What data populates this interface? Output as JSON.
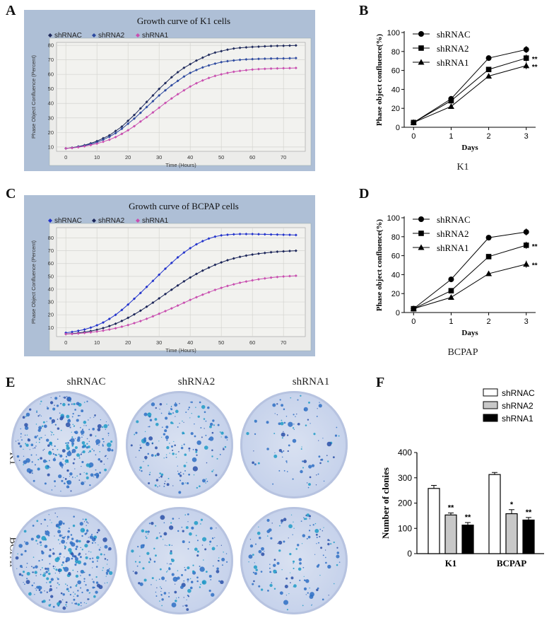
{
  "panels": {
    "A": "A",
    "B": "B",
    "C": "C",
    "D": "D",
    "E": "E",
    "F": "F"
  },
  "chart_data": [
    {
      "id": "A",
      "type": "line",
      "title": "Growth curve  of K1 cells",
      "xlabel": "Time (Hours)",
      "ylabel": "Phase Object Confluence (Percent)",
      "xlim": [
        -3,
        77
      ],
      "ylim": [
        7,
        82
      ],
      "xticks": [
        0,
        10,
        20,
        30,
        40,
        50,
        60,
        70
      ],
      "yticks": [
        10,
        20,
        30,
        40,
        50,
        60,
        70,
        80
      ],
      "grid": true,
      "legend_position": "top-left",
      "series": [
        {
          "name": "shRNAC",
          "color": "#1f2a5c",
          "x": [
            0,
            2,
            4,
            6,
            8,
            10,
            12,
            14,
            16,
            18,
            20,
            22,
            24,
            26,
            28,
            30,
            32,
            34,
            36,
            38,
            40,
            42,
            44,
            46,
            48,
            50,
            52,
            54,
            56,
            58,
            60,
            62,
            64,
            66,
            68,
            70,
            72,
            74
          ],
          "values": [
            9,
            9.5,
            10.3,
            11.2,
            12.5,
            14,
            16,
            18,
            21,
            24,
            28,
            32,
            36.5,
            41,
            45.5,
            50,
            54,
            58,
            61.5,
            64.5,
            67,
            69.5,
            71.5,
            73.5,
            75,
            76,
            77,
            77.8,
            78.3,
            78.6,
            78.9,
            79.1,
            79.3,
            79.5,
            79.6,
            79.7,
            79.8,
            79.9
          ]
        },
        {
          "name": "shRNA2",
          "color": "#2d4aa0",
          "x": [
            0,
            2,
            4,
            6,
            8,
            10,
            12,
            14,
            16,
            18,
            20,
            22,
            24,
            26,
            28,
            30,
            32,
            34,
            36,
            38,
            40,
            42,
            44,
            46,
            48,
            50,
            52,
            54,
            56,
            58,
            60,
            62,
            64,
            66,
            68,
            70,
            72,
            74
          ],
          "values": [
            9,
            9.4,
            10.1,
            10.9,
            12,
            13.2,
            15,
            17,
            19.5,
            22.5,
            26,
            29.5,
            33.5,
            37.5,
            41.5,
            45.5,
            49,
            52.5,
            55.5,
            58.5,
            61,
            63,
            64.8,
            66.2,
            67.4,
            68.4,
            69.1,
            69.6,
            70,
            70.3,
            70.5,
            70.7,
            70.8,
            70.9,
            71,
            71,
            71.1,
            71.2
          ]
        },
        {
          "name": "shRNA1",
          "color": "#c94fb0",
          "x": [
            0,
            2,
            4,
            6,
            8,
            10,
            12,
            14,
            16,
            18,
            20,
            22,
            24,
            26,
            28,
            30,
            32,
            34,
            36,
            38,
            40,
            42,
            44,
            46,
            48,
            50,
            52,
            54,
            56,
            58,
            60,
            62,
            64,
            66,
            68,
            70,
            72,
            74
          ],
          "values": [
            9,
            9.3,
            9.8,
            10.5,
            11.3,
            12.3,
            13.6,
            15,
            16.8,
            19,
            21.5,
            24.3,
            27.5,
            30.5,
            33.8,
            37,
            40.3,
            43.4,
            46.3,
            49,
            51.6,
            53.9,
            55.8,
            57.5,
            58.9,
            60,
            61,
            61.8,
            62.4,
            62.9,
            63.3,
            63.6,
            63.8,
            64,
            64.1,
            64.2,
            64.3,
            64.4
          ]
        }
      ]
    },
    {
      "id": "B",
      "type": "line",
      "title": "",
      "xlabel": "Days",
      "ylabel": "Phase object confluence(%)",
      "caption": "K1",
      "xlim": [
        -0.25,
        3.25
      ],
      "ylim": [
        0,
        100
      ],
      "xticks": [
        0,
        1,
        2,
        3
      ],
      "yticks": [
        0,
        20,
        40,
        60,
        80,
        100
      ],
      "legend_position": "top-left",
      "categories": [
        0,
        1,
        2,
        3
      ],
      "series": [
        {
          "name": "shRNAC",
          "marker": "circle",
          "values": [
            5,
            30,
            73,
            82
          ],
          "sig": ""
        },
        {
          "name": "shRNA2",
          "marker": "square",
          "values": [
            5,
            28,
            61,
            73
          ],
          "sig": "**"
        },
        {
          "name": "shRNA1",
          "marker": "triangle",
          "values": [
            5,
            22,
            54,
            65
          ],
          "sig": "**"
        }
      ]
    },
    {
      "id": "C",
      "type": "line",
      "title": "Growth curve of BCPAP cells",
      "xlabel": "Time (Hours)",
      "ylabel": "Phase Object Confluence (Percent)",
      "xlim": [
        -3,
        77
      ],
      "ylim": [
        3,
        88
      ],
      "xticks": [
        0,
        10,
        20,
        30,
        40,
        50,
        60,
        70
      ],
      "yticks": [
        10,
        20,
        30,
        40,
        50,
        60,
        70,
        80
      ],
      "grid": true,
      "legend_position": "top-left",
      "series": [
        {
          "name": "shRNAC",
          "color": "#2233cc",
          "x": [
            0,
            2,
            4,
            6,
            8,
            10,
            12,
            14,
            16,
            18,
            20,
            22,
            24,
            26,
            28,
            30,
            32,
            34,
            36,
            38,
            40,
            42,
            44,
            46,
            48,
            50,
            52,
            54,
            56,
            58,
            60,
            62,
            64,
            66,
            68,
            70,
            72,
            74
          ],
          "values": [
            6,
            6.6,
            7.5,
            8.5,
            10,
            11.8,
            14,
            16.8,
            20,
            23.8,
            28,
            32.5,
            37,
            41.8,
            46.5,
            51.3,
            56,
            60.5,
            64.8,
            68.6,
            72,
            75,
            77.5,
            79.5,
            81,
            82,
            82.5,
            82.8,
            83,
            83,
            83,
            82.9,
            82.8,
            82.7,
            82.6,
            82.5,
            82.4,
            82.3
          ]
        },
        {
          "name": "shRNA2",
          "color": "#1a2458",
          "x": [
            0,
            2,
            4,
            6,
            8,
            10,
            12,
            14,
            16,
            18,
            20,
            22,
            24,
            26,
            28,
            30,
            32,
            34,
            36,
            38,
            40,
            42,
            44,
            46,
            48,
            50,
            52,
            54,
            56,
            58,
            60,
            62,
            64,
            66,
            68,
            70,
            72,
            74
          ],
          "values": [
            5,
            5.3,
            5.8,
            6.5,
            7.3,
            8.3,
            9.6,
            11.2,
            13,
            15.2,
            17.6,
            20.3,
            23.2,
            26.3,
            29.5,
            32.8,
            36.2,
            39.6,
            42.9,
            46.1,
            49.1,
            51.9,
            54.5,
            56.8,
            59,
            60.9,
            62.6,
            64,
            65.2,
            66.2,
            67,
            67.7,
            68.3,
            68.8,
            69.2,
            69.5,
            69.8,
            70
          ]
        },
        {
          "name": "shRNA1",
          "color": "#c94fb0",
          "x": [
            0,
            2,
            4,
            6,
            8,
            10,
            12,
            14,
            16,
            18,
            20,
            22,
            24,
            26,
            28,
            30,
            32,
            34,
            36,
            38,
            40,
            42,
            44,
            46,
            48,
            50,
            52,
            54,
            56,
            58,
            60,
            62,
            64,
            66,
            68,
            70,
            72,
            74
          ],
          "values": [
            5,
            5.1,
            5.4,
            5.8,
            6.3,
            6.9,
            7.6,
            8.5,
            9.5,
            10.7,
            12,
            13.5,
            15.1,
            16.9,
            18.8,
            20.8,
            22.9,
            25,
            27.2,
            29.4,
            31.6,
            33.7,
            35.7,
            37.6,
            39.4,
            41,
            42.5,
            43.8,
            45,
            46,
            46.9,
            47.7,
            48.4,
            49,
            49.5,
            49.9,
            50.2,
            50.5
          ]
        }
      ]
    },
    {
      "id": "D",
      "type": "line",
      "title": "",
      "xlabel": "Days",
      "ylabel": "Phase object confluence(%)",
      "caption": "BCPAP",
      "xlim": [
        -0.25,
        3.25
      ],
      "ylim": [
        0,
        100
      ],
      "xticks": [
        0,
        1,
        2,
        3
      ],
      "yticks": [
        0,
        20,
        40,
        60,
        80,
        100
      ],
      "legend_position": "top-left",
      "categories": [
        0,
        1,
        2,
        3
      ],
      "series": [
        {
          "name": "shRNAC",
          "marker": "circle",
          "values": [
            4,
            35,
            79,
            85
          ],
          "sig": ""
        },
        {
          "name": "shRNA2",
          "marker": "square",
          "values": [
            4,
            23,
            59,
            71
          ],
          "sig": "**"
        },
        {
          "name": "shRNA1",
          "marker": "triangle",
          "values": [
            4,
            16,
            41,
            51
          ],
          "sig": "**"
        }
      ]
    },
    {
      "id": "F",
      "type": "bar",
      "title": "",
      "xlabel": "",
      "ylabel": "Number of clonies",
      "ylim": [
        0,
        400
      ],
      "yticks": [
        0,
        100,
        200,
        300,
        400
      ],
      "legend_position": "top-right",
      "categories": [
        "K1",
        "BCPAP"
      ],
      "series": [
        {
          "name": "shRNAC",
          "fill": "#ffffff",
          "values": [
            258,
            313
          ],
          "err": [
            12,
            8
          ],
          "sig": [
            "",
            ""
          ]
        },
        {
          "name": "shRNA2",
          "fill": "#c8c8c8",
          "values": [
            153,
            158
          ],
          "err": [
            8,
            16
          ],
          "sig": [
            "**",
            "*"
          ]
        },
        {
          "name": "shRNA1",
          "fill": "#000000",
          "values": [
            113,
            133
          ],
          "err": [
            10,
            10
          ],
          "sig": [
            "**",
            "**"
          ]
        }
      ]
    }
  ],
  "colony_panel": {
    "columns": [
      "shRNAC",
      "shRNA2",
      "shRNA1"
    ],
    "rows": [
      "K1",
      "BCPAP"
    ],
    "densities": [
      [
        1.0,
        0.6,
        0.3
      ],
      [
        1.0,
        0.55,
        0.45
      ]
    ]
  }
}
